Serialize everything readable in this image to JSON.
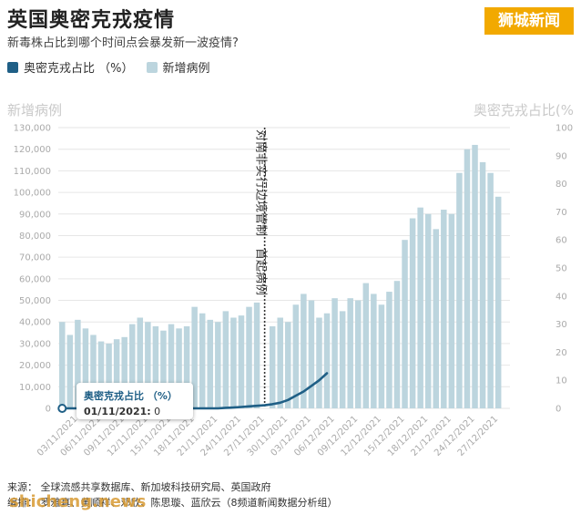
{
  "header": {
    "title": "英国奥密克戎疫情",
    "subtitle": "新毒株占比到哪个时间点会暴发新一波疫情?",
    "badge": "狮城新闻"
  },
  "legend": {
    "line_label": "奥密克戎占比 （%）",
    "bar_label": "新增病例"
  },
  "axis_titles": {
    "left": "新增病例",
    "right": "奥密克戎占比(%"
  },
  "vline_label": "对南非实行边境管制　首起病例",
  "tooltip": {
    "title": "奥密克戎占比 （%）",
    "date": "01/11/2021:",
    "value": "0"
  },
  "footer": {
    "line1": "来源：  全球流感共享数据库、新加坡科技研究局、英国政府",
    "line2": "编排：  罗雅真、黄顺祥、邓欣、陈思璇、蓝欣云（8频道新闻数据分析组）",
    "watermark": "shicheng.news"
  },
  "colors": {
    "bar": "#bcd5de",
    "line": "#1f5f86",
    "grid": "#e6e6e6",
    "badge": "#f2a900"
  },
  "chart_data": {
    "type": "bar",
    "left_ylim": [
      0,
      130000
    ],
    "left_ticks": [
      "0",
      "10,000",
      "20,000",
      "30,000",
      "40,000",
      "50,000",
      "60,000",
      "70,000",
      "80,000",
      "90,000",
      "100,000",
      "110,000",
      "120,000",
      "130,000"
    ],
    "right_ylim": [
      0,
      100
    ],
    "right_ticks": [
      "0",
      "10",
      "20",
      "30",
      "40",
      "50",
      "60",
      "70",
      "80",
      "90",
      "100"
    ],
    "grid": true,
    "legend_position": "top-left",
    "dates": [
      "01/11",
      "02/11",
      "03/11",
      "04/11",
      "05/11",
      "06/11",
      "07/11",
      "08/11",
      "09/11",
      "10/11",
      "11/11",
      "12/11",
      "13/11",
      "14/11",
      "15/11",
      "16/11",
      "17/11",
      "18/11",
      "19/11",
      "20/11",
      "21/11",
      "22/11",
      "23/11",
      "24/11",
      "25/11",
      "26/11",
      "27/11",
      "28/11",
      "29/11",
      "30/11",
      "01/12",
      "02/12",
      "03/12",
      "04/12",
      "05/12",
      "06/12",
      "07/12",
      "08/12",
      "09/12",
      "10/12",
      "11/12",
      "12/12",
      "13/12",
      "14/12",
      "15/12",
      "16/12",
      "17/12",
      "18/12",
      "19/12",
      "20/12",
      "21/12",
      "22/12",
      "23/12",
      "24/12",
      "25/12",
      "26/12",
      "27/12",
      "28/12"
    ],
    "x_tick_labels": [
      "03/11/2021",
      "06/11/2021",
      "09/11/2021",
      "12/11/2021",
      "15/11/2021",
      "18/11/2021",
      "21/11/2021",
      "24/11/2021",
      "27/11/2021",
      "30/11/2021",
      "03/12/2021",
      "06/12/2021",
      "09/12/2021",
      "12/12/2021",
      "15/12/2021",
      "18/12/2021",
      "21/12/2021",
      "24/12/2021",
      "27/12/2021"
    ],
    "x_tick_indices": [
      2,
      5,
      8,
      11,
      14,
      17,
      20,
      23,
      26,
      29,
      32,
      35,
      38,
      41,
      44,
      47,
      50,
      53,
      56
    ],
    "series": [
      {
        "name": "新增病例",
        "axis": "left",
        "values": [
          40000,
          34000,
          41000,
          37000,
          34000,
          31000,
          30000,
          32000,
          33000,
          39000,
          42000,
          40000,
          38000,
          36000,
          39000,
          37000,
          38000,
          47000,
          44000,
          41000,
          40000,
          45000,
          42000,
          43000,
          47000,
          49000,
          0,
          38000,
          42000,
          40000,
          48000,
          53000,
          50000,
          42000,
          44000,
          51000,
          45000,
          51000,
          50000,
          58000,
          53000,
          48000,
          54000,
          59000,
          78000,
          88000,
          93000,
          90000,
          83000,
          92000,
          90000,
          109000,
          120000,
          122000,
          114000,
          109000,
          98000,
          0
        ]
      },
      {
        "name": "奥密克戎占比 （%）",
        "axis": "right",
        "values": [
          0,
          0,
          0,
          0,
          0,
          0,
          0,
          0,
          0,
          0,
          0,
          0,
          0,
          0,
          0,
          0,
          0,
          0,
          0,
          0,
          0,
          0.2,
          0.3,
          0.5,
          0.7,
          0.9,
          1.1,
          1.5,
          2.0,
          3.0,
          4.5,
          6.0,
          8.0,
          10.0,
          12.5,
          null,
          null,
          null,
          null,
          null,
          null,
          null,
          null,
          null,
          null,
          null,
          null,
          null,
          null,
          null,
          null,
          null,
          null,
          null,
          null,
          null,
          null,
          null
        ]
      }
    ],
    "vertical_marker_index": 26
  }
}
